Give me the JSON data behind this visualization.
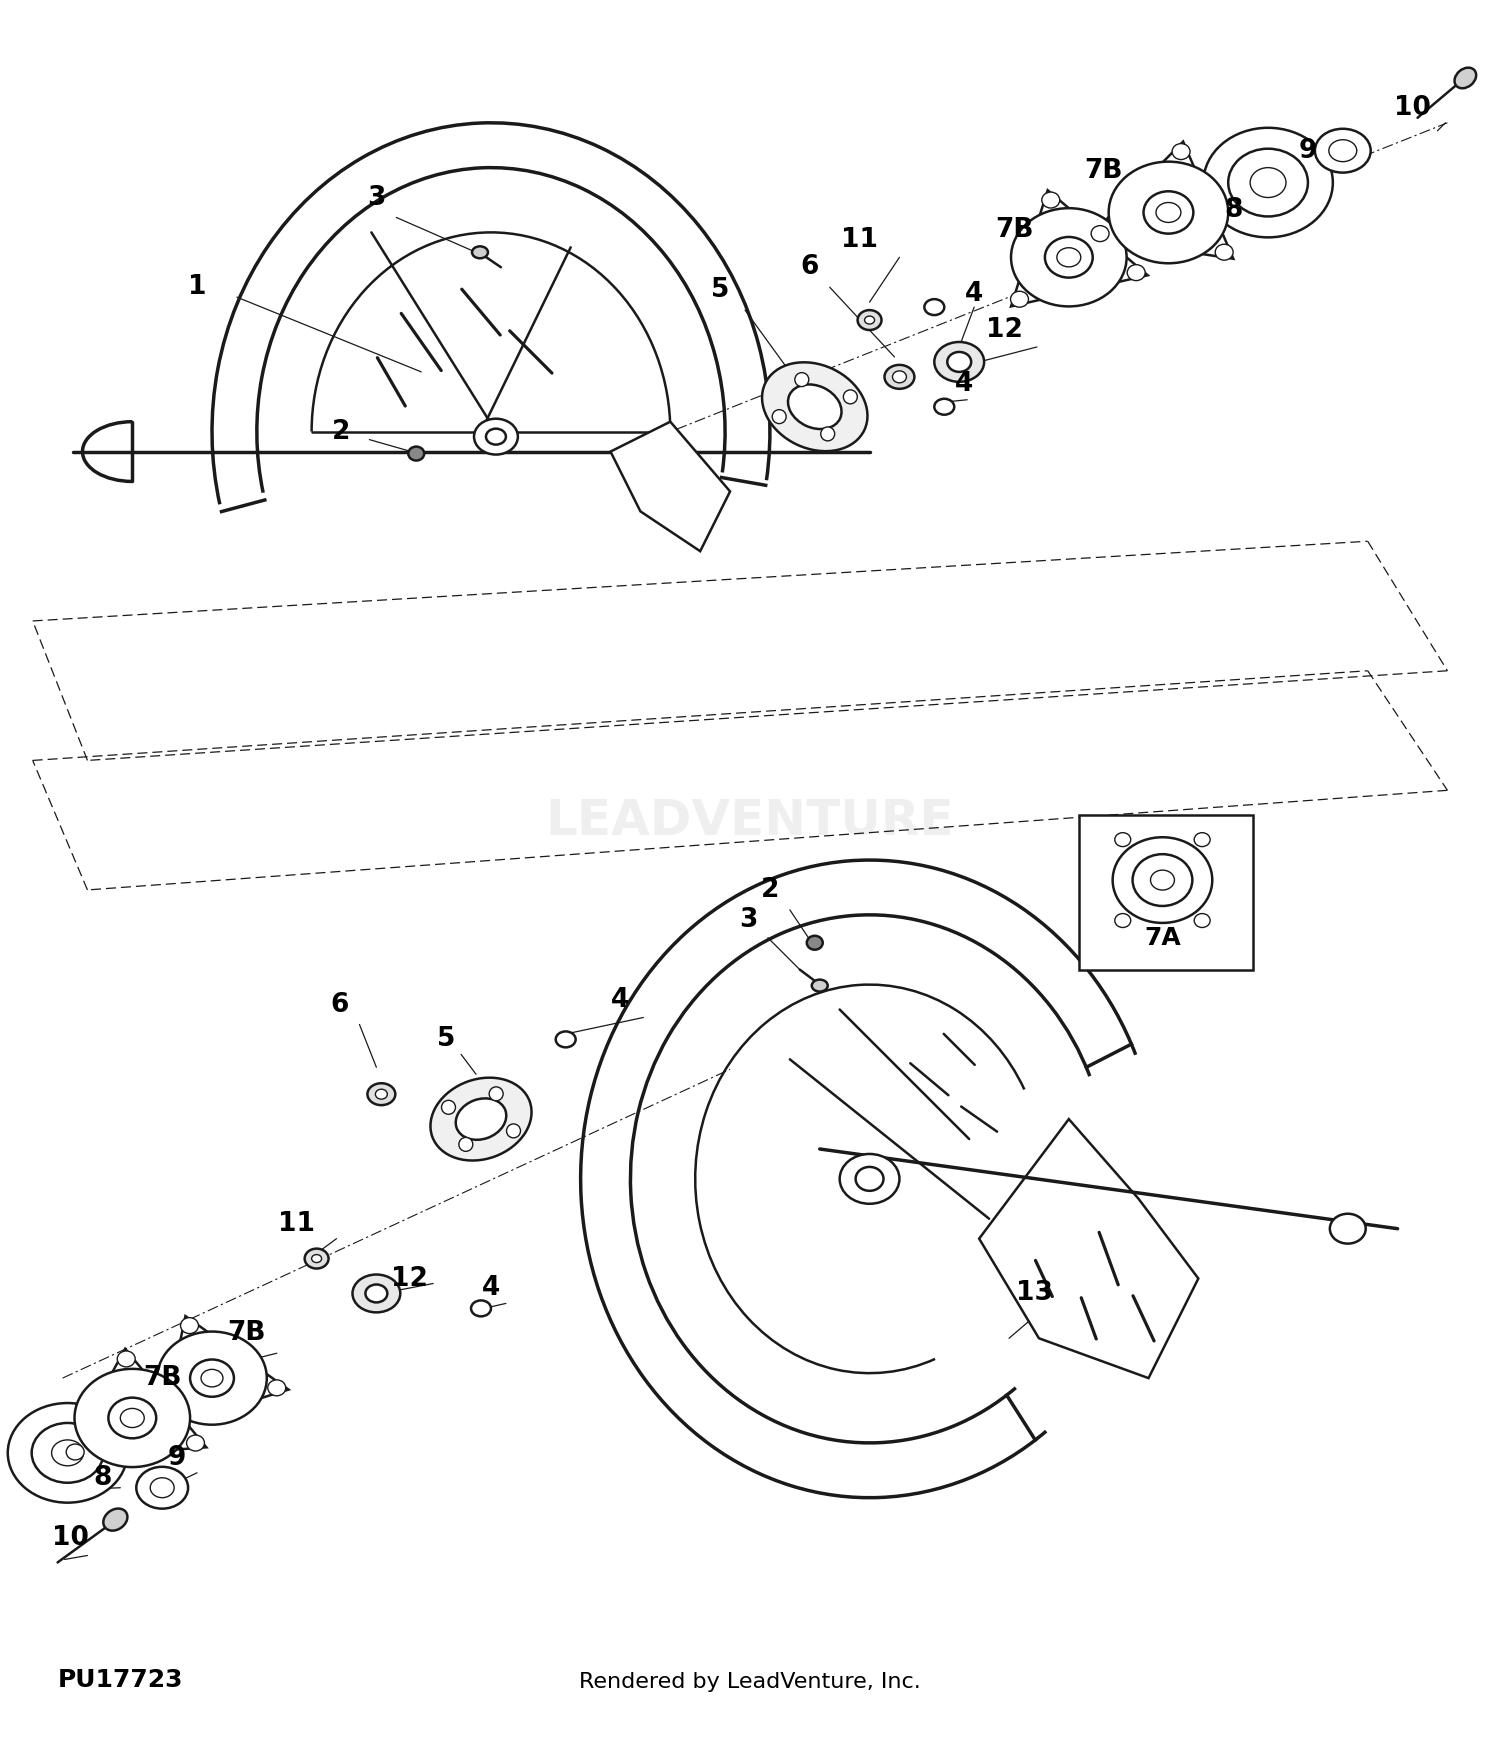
{
  "footer_left": "PU17723",
  "footer_right": "Rendered by LeadVenture, Inc.",
  "bg_color": "#ffffff",
  "line_color": "#1a1a1a",
  "watermark": "LEADVENTURE"
}
